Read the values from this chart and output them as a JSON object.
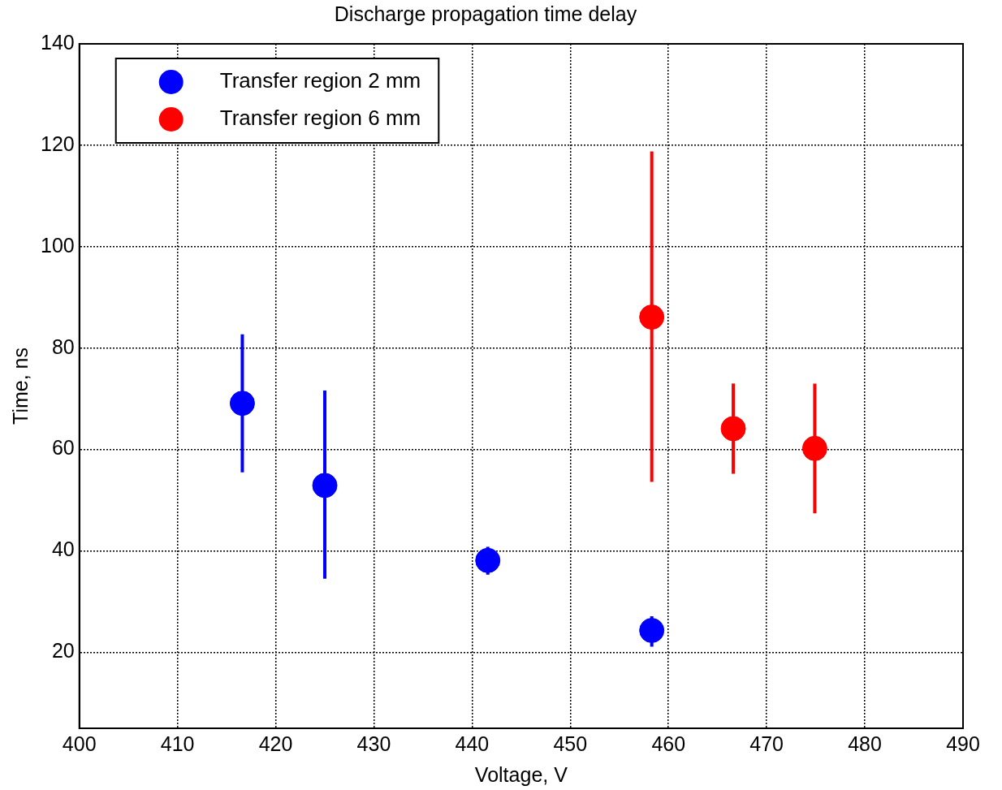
{
  "chart_data": {
    "type": "scatter",
    "title": "Discharge propagation time delay",
    "xlabel": "Voltage, V",
    "ylabel": "Time, ns",
    "xlim": [
      400,
      490
    ],
    "xticks": [
      400,
      410,
      420,
      430,
      440,
      450,
      460,
      470,
      480,
      490
    ],
    "ylim": [
      5,
      140
    ],
    "yticks": [
      20,
      40,
      60,
      80,
      100,
      120,
      140
    ],
    "grid": true,
    "legend": "top left",
    "marker": "circle",
    "series": [
      {
        "name": "Transfer region 2 mm",
        "color": "#0000ff",
        "x": [
          416.6,
          425.0,
          441.6,
          458.3
        ],
        "values": [
          69.1,
          52.9,
          38.1,
          24.3
        ],
        "errors": [
          [
            55.5,
            82.7
          ],
          [
            34.5,
            71.6
          ],
          [
            35.3,
            40.8
          ],
          [
            21.1,
            27.1
          ]
        ]
      },
      {
        "name": "Transfer region 6 mm",
        "color": "#ff0000",
        "x": [
          458.3,
          466.6,
          474.9
        ],
        "values": [
          86.1,
          64.1,
          60.2
        ],
        "errors": [
          [
            53.6,
            118.8
          ],
          [
            55.2,
            73.0
          ],
          [
            47.4,
            73.0
          ]
        ]
      }
    ]
  }
}
